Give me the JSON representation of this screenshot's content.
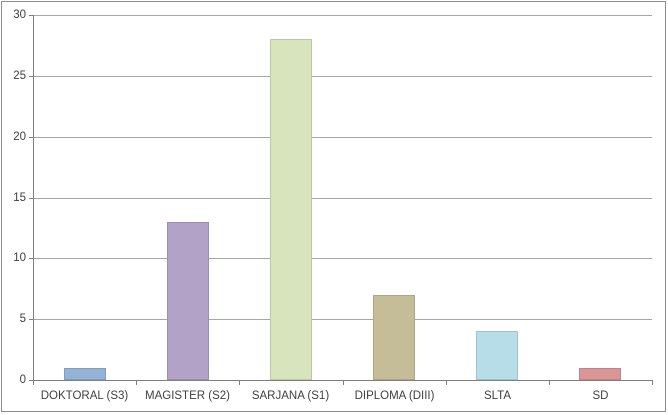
{
  "chart_data": {
    "type": "bar",
    "title": "",
    "xlabel": "",
    "ylabel": "",
    "categories": [
      "DOKTORAL (S3)",
      "MAGISTER (S2)",
      "SARJANA (S1)",
      "DIPLOMA (DIII)",
      "SLTA",
      "SD"
    ],
    "values": [
      1,
      13,
      28,
      7,
      4,
      1
    ],
    "bar_colors": [
      "#95B3D7",
      "#B2A2C7",
      "#D7E4BC",
      "#C4BD97",
      "#B7DEE8",
      "#D99694"
    ],
    "ylim": [
      0,
      30
    ],
    "yticks": [
      0,
      5,
      10,
      15,
      20,
      25,
      30
    ],
    "grid": "horizontal-major",
    "legend_position": "none"
  },
  "style": {
    "gridline_color": "#A6A6A6",
    "axis_color": "#7F7F7F",
    "tick_label_color": "#3F3F3F",
    "chart_border_color": "#8E8E8E",
    "background_color": "#FFFFFF"
  }
}
